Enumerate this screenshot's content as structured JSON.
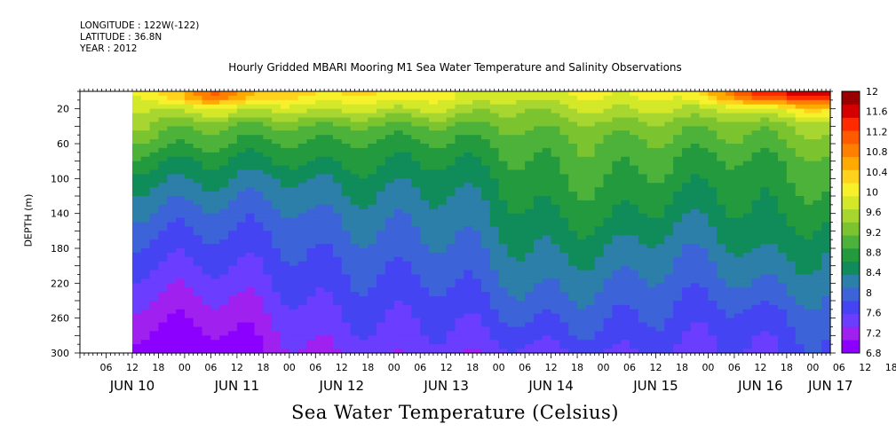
{
  "header": {
    "longitude": "LONGITUDE : 122W(-122)",
    "latitude": "LATITUDE : 36.8N",
    "year": "YEAR : 2012"
  },
  "chart_data": {
    "type": "heatmap",
    "title": "Hourly Gridded MBARI Mooring M1 Sea Water Temperature and Salinity Observations",
    "colorbar_title": "Sea Water Temperature (Celsius)",
    "ylabel": "DEPTH (m)",
    "ylim": [
      300,
      0
    ],
    "y_inverted": true,
    "y_ticks": [
      "20",
      "60",
      "100",
      "140",
      "180",
      "220",
      "260",
      "300"
    ],
    "x_hour_ticks": [
      "06",
      "12",
      "18",
      "00",
      "06",
      "12",
      "18",
      "00",
      "06",
      "12",
      "18",
      "00",
      "06",
      "12",
      "18",
      "00",
      "06",
      "12",
      "18",
      "00",
      "06",
      "12",
      "18",
      "00",
      "06",
      "12",
      "18",
      "00",
      "06",
      "12",
      "18",
      "00"
    ],
    "x_day_labels": [
      "JUN 10",
      "JUN 11",
      "JUN 12",
      "JUN 13",
      "JUN 14",
      "JUN 15",
      "JUN 16",
      "JUN 17"
    ],
    "x_range": [
      "2012-06-10 00:00",
      "2012-06-17 04:00"
    ],
    "data_start": "2012-06-10 12:00",
    "color_levels": [
      "6.8",
      "7.2",
      "7.6",
      "8",
      "8.4",
      "8.8",
      "9.2",
      "9.6",
      "10",
      "10.4",
      "10.8",
      "11.2",
      "11.6",
      "12"
    ],
    "colors": [
      "#8b00ff",
      "#a020f0",
      "#6a3dff",
      "#4444f2",
      "#3c63d8",
      "#2c7fa8",
      "#0f8c5a",
      "#239a3e",
      "#4cb23a",
      "#7cc42f",
      "#a8d630",
      "#d2e829",
      "#f6f12a",
      "#ffd21e",
      "#ffaa00",
      "#ff7f00",
      "#ff5a00",
      "#ff2a00",
      "#d40000",
      "#990000"
    ],
    "profile_depths_m": [
      5,
      20,
      40,
      60,
      80,
      100,
      140,
      180,
      220,
      260,
      300
    ],
    "profile_times": [
      "2012-06-10 12:00",
      "2012-06-11 06:00",
      "2012-06-12 00:00",
      "2012-06-12 18:00",
      "2012-06-13 12:00",
      "2012-06-14 06:00",
      "2012-06-15 00:00",
      "2012-06-15 18:00",
      "2012-06-16 12:00",
      "2012-06-17 04:00"
    ],
    "profiles_celsius": [
      [
        9.8,
        9.5,
        9.3,
        9.0,
        8.7,
        8.4,
        8.0,
        7.7,
        7.4,
        7.1,
        6.8
      ],
      [
        11.0,
        10.0,
        9.3,
        9.0,
        8.7,
        8.5,
        8.1,
        7.8,
        7.5,
        7.2,
        6.9
      ],
      [
        10.2,
        9.7,
        9.1,
        8.8,
        8.6,
        8.3,
        8.0,
        7.8,
        7.6,
        7.4,
        7.2
      ],
      [
        10.1,
        9.6,
        9.0,
        8.7,
        8.6,
        8.4,
        8.1,
        7.9,
        7.7,
        7.5,
        7.3
      ],
      [
        10.0,
        9.8,
        9.2,
        8.9,
        8.7,
        8.5,
        8.3,
        8.1,
        7.9,
        7.7,
        7.5
      ],
      [
        9.8,
        9.4,
        9.2,
        9.0,
        8.9,
        8.8,
        8.6,
        8.4,
        8.2,
        7.9,
        7.5
      ],
      [
        9.9,
        9.6,
        9.2,
        9.0,
        8.9,
        8.8,
        8.6,
        8.3,
        8.0,
        7.8,
        7.5
      ],
      [
        10.0,
        9.7,
        9.3,
        9.1,
        8.9,
        8.8,
        8.5,
        8.2,
        8.0,
        7.8,
        7.6
      ],
      [
        11.4,
        9.9,
        9.3,
        9.1,
        8.9,
        8.8,
        8.7,
        8.5,
        8.2,
        7.8,
        7.6
      ],
      [
        11.6,
        10.2,
        9.4,
        9.2,
        9.0,
        8.9,
        8.6,
        8.3,
        8.1,
        7.9,
        7.7
      ]
    ]
  }
}
